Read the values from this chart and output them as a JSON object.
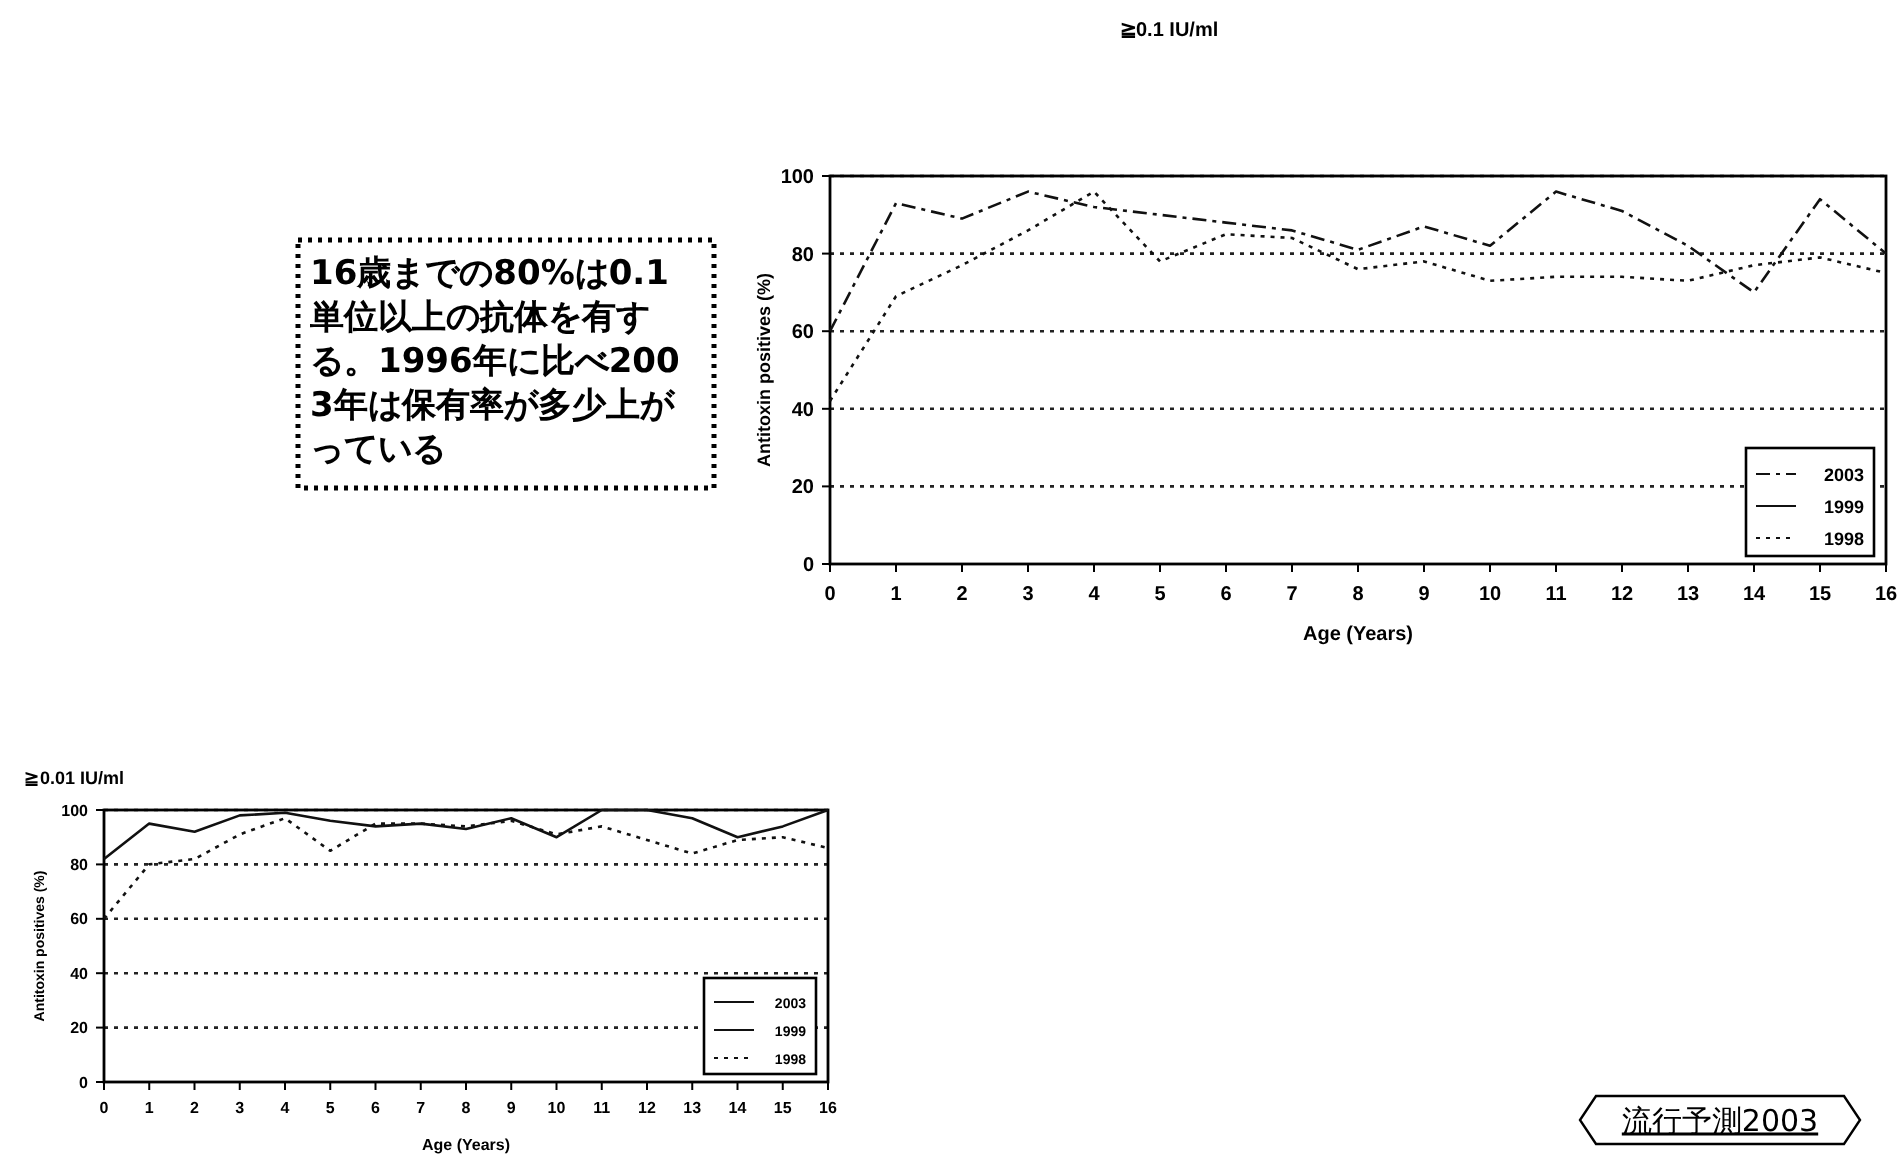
{
  "chart_data": [
    {
      "type": "line",
      "title": "≧0.1 IU/ml",
      "xlabel": "Age (Years)",
      "ylabel": "Antitoxin positives (%)",
      "x": [
        0,
        1,
        2,
        3,
        4,
        5,
        6,
        7,
        8,
        9,
        10,
        11,
        12,
        13,
        14,
        15,
        16
      ],
      "xlim": [
        0,
        16
      ],
      "xticks": [
        0,
        1,
        2,
        3,
        4,
        5,
        6,
        7,
        8,
        9,
        10,
        11,
        12,
        13,
        14,
        15,
        16
      ],
      "ylim": [
        0,
        100
      ],
      "yticks": [
        0,
        20,
        40,
        60,
        80,
        100
      ],
      "grid": "y",
      "legend": "bottom right",
      "series": [
        {
          "name": "2003",
          "color": "#111111",
          "line_style": "dashed",
          "values": [
            60,
            93,
            89,
            96,
            92,
            90,
            88,
            86,
            81,
            87,
            82,
            96,
            91,
            82,
            70,
            94,
            80
          ]
        },
        {
          "name": "1999",
          "color": "#111111",
          "line_style": "solid",
          "values": [
            null,
            null,
            null,
            null,
            null,
            null,
            null,
            null,
            null,
            null,
            null,
            null,
            null,
            null,
            null,
            null,
            null
          ]
        },
        {
          "name": "1998",
          "color": "#111111",
          "line_style": "dotted",
          "values": [
            42,
            69,
            77,
            86,
            96,
            78,
            85,
            84,
            76,
            78,
            73,
            74,
            74,
            73,
            77,
            79,
            75
          ]
        }
      ],
      "annotations": [
        "16歳までの80%は0.1単位以上の抗体を有する。1996年に比べ2003年は保有率が多少上がっている"
      ]
    },
    {
      "type": "line",
      "title": "≧0.01 IU/ml",
      "xlabel": "Age (Years)",
      "ylabel": "Antitoxin positives (%)",
      "x": [
        0,
        1,
        2,
        3,
        4,
        5,
        6,
        7,
        8,
        9,
        10,
        11,
        12,
        13,
        14,
        15,
        16
      ],
      "xlim": [
        0,
        16
      ],
      "xticks": [
        0,
        1,
        2,
        3,
        4,
        5,
        6,
        7,
        8,
        9,
        10,
        11,
        12,
        13,
        14,
        15,
        16
      ],
      "ylim": [
        0,
        100
      ],
      "yticks": [
        0,
        20,
        40,
        60,
        80,
        100
      ],
      "grid": "y",
      "legend": "bottom right",
      "series": [
        {
          "name": "2003",
          "color": "#111111",
          "line_style": "solid",
          "values": [
            82,
            95,
            92,
            98,
            99,
            96,
            94,
            95,
            93,
            97,
            90,
            100,
            100,
            97,
            90,
            94,
            100
          ]
        },
        {
          "name": "1999",
          "color": "#111111",
          "line_style": "solid",
          "values": [
            null,
            null,
            null,
            null,
            null,
            null,
            null,
            null,
            null,
            null,
            null,
            null,
            null,
            null,
            null,
            null,
            null
          ]
        },
        {
          "name": "1998",
          "color": "#111111",
          "line_style": "dotted",
          "values": [
            60,
            80,
            82,
            91,
            97,
            85,
            95,
            95,
            94,
            96,
            91,
            94,
            89,
            84,
            89,
            90,
            86
          ]
        }
      ],
      "annotations": [
        "流行予測2003"
      ]
    }
  ]
}
